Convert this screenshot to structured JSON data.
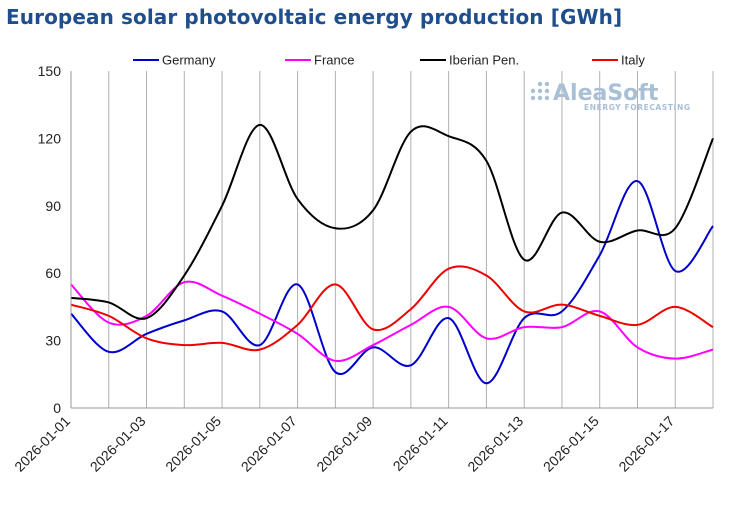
{
  "chart_data": {
    "type": "line",
    "title": "European solar photovoltaic energy production [GWh]",
    "xlabel": "",
    "ylabel": "",
    "ylim": [
      0,
      150
    ],
    "yticks": [
      0,
      30,
      60,
      90,
      120,
      150
    ],
    "x": [
      "2026-01-01",
      "2026-01-02",
      "2026-01-03",
      "2026-01-04",
      "2026-01-05",
      "2026-01-06",
      "2026-01-07",
      "2026-01-08",
      "2026-01-09",
      "2026-01-10",
      "2026-01-11",
      "2026-01-12",
      "2026-01-13",
      "2026-01-14",
      "2026-01-15",
      "2026-01-16",
      "2026-01-17",
      "2026-01-18"
    ],
    "xtick_labels": [
      "2026-01-01",
      "2026-01-03",
      "2026-01-05",
      "2026-01-07",
      "2026-01-09",
      "2026-01-11",
      "2026-01-13",
      "2026-01-15",
      "2026-01-17"
    ],
    "grid": "vertical",
    "legend_position": "top",
    "series": [
      {
        "name": "Germany",
        "color": "#0000cc",
        "values": [
          42,
          25,
          33,
          39,
          43,
          28,
          55,
          16,
          27,
          19,
          40,
          11,
          40,
          43,
          68,
          101,
          61,
          81
        ]
      },
      {
        "name": "France",
        "color": "#ff00ff",
        "values": [
          55,
          38,
          41,
          56,
          50,
          42,
          33,
          21,
          28,
          37,
          45,
          31,
          36,
          36,
          43,
          27,
          22,
          26
        ]
      },
      {
        "name": "Iberian Pen.",
        "color": "#000000",
        "values": [
          49,
          47,
          40,
          59,
          90,
          126,
          93,
          80,
          88,
          123,
          121,
          110,
          66,
          87,
          74,
          79,
          80,
          120
        ]
      },
      {
        "name": "Italy",
        "color": "#ee0000",
        "values": [
          46,
          41,
          31,
          28,
          29,
          26,
          37,
          55,
          35,
          44,
          62,
          59,
          43,
          46,
          41,
          37,
          45,
          36
        ]
      }
    ]
  },
  "branding": {
    "name": "AleaSoft",
    "tagline": "ENERGY FORECASTING"
  }
}
